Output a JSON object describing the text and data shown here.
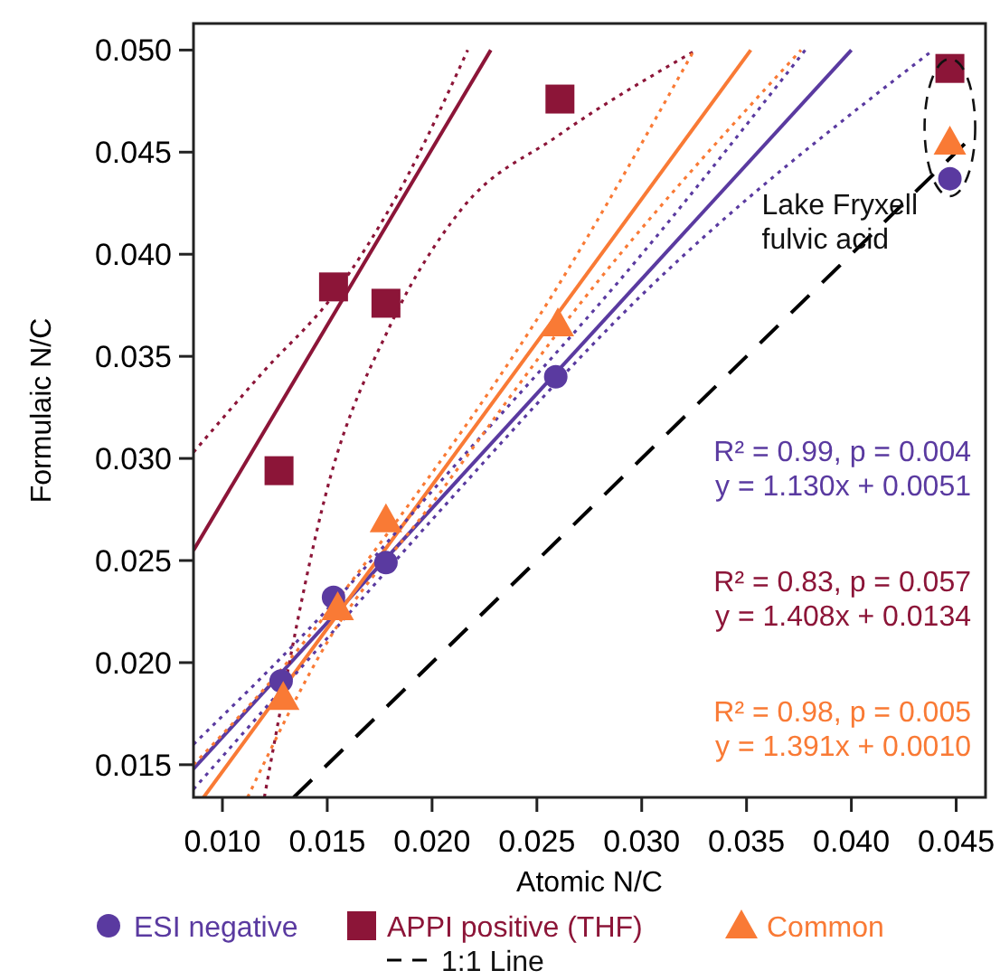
{
  "chart_data": {
    "type": "scatter",
    "xlabel": "Atomic N/C",
    "ylabel": "Formulaic N/C",
    "xlim": [
      0.00862,
      0.0464
    ],
    "ylim": [
      0.0134,
      0.0513
    ],
    "xticks": [
      {
        "value": 0.01,
        "label": "0.010"
      },
      {
        "value": 0.015,
        "label": "0.015"
      },
      {
        "value": 0.02,
        "label": "0.020"
      },
      {
        "value": 0.025,
        "label": "0.025"
      },
      {
        "value": 0.03,
        "label": "0.030"
      },
      {
        "value": 0.035,
        "label": "0.035"
      },
      {
        "value": 0.04,
        "label": "0.040"
      },
      {
        "value": 0.045,
        "label": "0.045"
      }
    ],
    "yticks": [
      {
        "value": 0.015,
        "label": "0.015"
      },
      {
        "value": 0.02,
        "label": "0.020"
      },
      {
        "value": 0.025,
        "label": "0.025"
      },
      {
        "value": 0.03,
        "label": "0.030"
      },
      {
        "value": 0.035,
        "label": "0.035"
      },
      {
        "value": 0.04,
        "label": "0.040"
      },
      {
        "value": 0.045,
        "label": "0.045"
      },
      {
        "value": 0.05,
        "label": "0.050"
      }
    ],
    "grid": false,
    "legend": "bottom",
    "series": [
      {
        "name": "ESI negative",
        "marker": "circle",
        "color": "#5a3aa0",
        "x": [
          0.0128,
          0.0153,
          0.0178,
          0.0259,
          0.0447
        ],
        "values": [
          0.0191,
          0.0232,
          0.0249,
          0.034,
          0.0437
        ]
      },
      {
        "name": "APPI positive (THF)",
        "marker": "square",
        "color": "#8c1538",
        "x": [
          0.0127,
          0.0153,
          0.0178,
          0.0261,
          0.0447
        ],
        "values": [
          0.0294,
          0.0384,
          0.0376,
          0.0476,
          0.0491
        ]
      },
      {
        "name": "Common",
        "marker": "triangle",
        "color": "#f97a35",
        "x": [
          0.0129,
          0.0155,
          0.0178,
          0.026,
          0.0447
        ],
        "values": [
          0.0183,
          0.0227,
          0.027,
          0.0366,
          0.0455
        ]
      },
      {
        "type": "line",
        "line_style": "solid",
        "color": "#5a3aa0",
        "x": [
          0.00862,
          0.04
        ],
        "values": [
          0.0148,
          0.05
        ]
      },
      {
        "type": "line",
        "line_style": "solid",
        "color": "#8c1538",
        "x": [
          0.00862,
          0.0228
        ],
        "values": [
          0.0255,
          0.05
        ]
      },
      {
        "type": "line",
        "line_style": "solid",
        "color": "#f97a35",
        "x": [
          0.0091,
          0.0352
        ],
        "values": [
          0.0134,
          0.05
        ]
      },
      {
        "type": "line",
        "line_style": "dotted",
        "color": "#5a3aa0",
        "x": [
          0.00862,
          0.015,
          0.02,
          0.03,
          0.0378
        ],
        "values": [
          0.016,
          0.0226,
          0.0284,
          0.04,
          0.05
        ]
      },
      {
        "type": "line",
        "line_style": "dotted",
        "color": "#5a3aa0",
        "x": [
          0.00862,
          0.015,
          0.02,
          0.03,
          0.0439
        ],
        "values": [
          0.0138,
          0.0212,
          0.027,
          0.038,
          0.05
        ]
      },
      {
        "type": "line",
        "line_style": "dotted",
        "color": "#8c1538",
        "x": [
          0.00862,
          0.012,
          0.0153,
          0.0185,
          0.0217
        ],
        "values": [
          0.0303,
          0.0343,
          0.038,
          0.0432,
          0.05
        ]
      },
      {
        "type": "line",
        "line_style": "dotted",
        "color": "#8c1538",
        "x": [
          0.012,
          0.0151,
          0.018,
          0.0214,
          0.026,
          0.0326
        ],
        "values": [
          0.0134,
          0.0289,
          0.0365,
          0.0422,
          0.0458,
          0.05
        ]
      },
      {
        "type": "line",
        "line_style": "dotted",
        "color": "#f97a35",
        "x": [
          0.00862,
          0.013,
          0.018,
          0.025,
          0.0325
        ],
        "values": [
          0.015,
          0.0199,
          0.0265,
          0.0368,
          0.05
        ]
      },
      {
        "type": "line",
        "line_style": "dotted",
        "color": "#f97a35",
        "x": [
          0.0112,
          0.015,
          0.02,
          0.027,
          0.0376
        ],
        "values": [
          0.0134,
          0.021,
          0.0278,
          0.0375,
          0.05
        ]
      },
      {
        "name": "1:1 Line",
        "type": "line",
        "line_style": "dashed",
        "color": "#000000",
        "x": [
          0.0134,
          0.0455
        ],
        "values": [
          0.0134,
          0.0455
        ]
      }
    ],
    "annotations": [
      {
        "text": "Lake Fryxell\nfulvic acid",
        "x": 0.0447,
        "y": 0.0455
      },
      "R² = 0.99, p = 0.004\ny = 1.130x + 0.0051",
      "R² = 0.83, p = 0.057\ny = 1.408x + 0.0134",
      "R² = 0.98, p = 0.005\ny = 1.391x + 0.0010"
    ]
  }
}
